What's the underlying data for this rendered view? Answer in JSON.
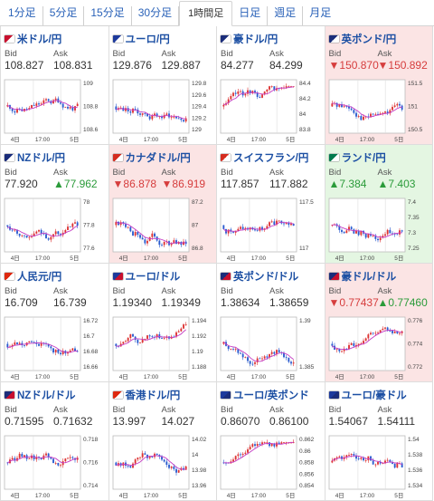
{
  "tabs": [
    {
      "label": "1分足",
      "active": false
    },
    {
      "label": "5分足",
      "active": false
    },
    {
      "label": "15分足",
      "active": false
    },
    {
      "label": "30分足",
      "active": false
    },
    {
      "label": "1時間足",
      "active": true
    },
    {
      "label": "日足",
      "active": false
    },
    {
      "label": "週足",
      "active": false
    },
    {
      "label": "月足",
      "active": false
    }
  ],
  "bid_label": "Bid",
  "ask_label": "Ask",
  "colors": {
    "red_bg": "#fbe4e4",
    "green_bg": "#e4f6e2",
    "name": "#1c4fa3",
    "down": "#d63d3d",
    "up": "#2b9b3a",
    "candle_up": "#d33",
    "candle_down": "#2a5ccf",
    "ma": "#c43bc4"
  },
  "cells": [
    {
      "name": "米ドル/円",
      "bid": "108.827",
      "ask": "108.831",
      "bg": "normal",
      "dir": "none",
      "flag": "us-jp-flag-icon",
      "yticks": [
        "109",
        "108.8",
        "108.6"
      ],
      "xticks": [
        "4日",
        "17:00",
        "5日"
      ],
      "seed": 11
    },
    {
      "name": "ユーロ/円",
      "bid": "129.876",
      "ask": "129.887",
      "bg": "normal",
      "dir": "none",
      "flag": "eu-jp-flag-icon",
      "yticks": [
        "129.8",
        "129.6",
        "129.4",
        "129.2",
        "129"
      ],
      "xticks": [
        "4日",
        "17:00",
        "5日"
      ],
      "seed": 23
    },
    {
      "name": "豪ドル/円",
      "bid": "84.277",
      "ask": "84.299",
      "bg": "normal",
      "dir": "none",
      "flag": "au-jp-flag-icon",
      "yticks": [
        "84.4",
        "84.2",
        "84",
        "83.8"
      ],
      "xticks": [
        "4日",
        "17:00",
        "5日"
      ],
      "seed": 37
    },
    {
      "name": "英ポンド/円",
      "bid": "150.870",
      "ask": "150.892",
      "bg": "red",
      "dir": "down",
      "flag": "gb-jp-flag-icon",
      "yticks": [
        "151.5",
        "151",
        "150.5"
      ],
      "xticks": [
        "4日",
        "17:00",
        "5日"
      ],
      "seed": 41
    },
    {
      "name": "NZドル/円",
      "bid": "77.920",
      "ask": "77.962",
      "bg": "normal",
      "dir": "ask-up",
      "flag": "nz-jp-flag-icon",
      "yticks": [
        "78",
        "77.8",
        "77.6"
      ],
      "xticks": [
        "4日",
        "17:00",
        "5日"
      ],
      "seed": 53
    },
    {
      "name": "カナダドル/円",
      "bid": "86.878",
      "ask": "86.919",
      "bg": "red",
      "dir": "down",
      "flag": "ca-jp-flag-icon",
      "yticks": [
        "87.2",
        "87",
        "86.8"
      ],
      "xticks": [
        "4日",
        "17:00",
        "5日"
      ],
      "seed": 67
    },
    {
      "name": "スイスフラン/円",
      "bid": "117.857",
      "ask": "117.882",
      "bg": "normal",
      "dir": "none",
      "flag": "ch-jp-flag-icon",
      "yticks": [
        "117.5",
        "117"
      ],
      "xticks": [
        "4日",
        "17:00",
        "5日"
      ],
      "seed": 71
    },
    {
      "name": "ランド/円",
      "bid": "7.384",
      "ask": "7.403",
      "bg": "green",
      "dir": "up",
      "flag": "za-jp-flag-icon",
      "yticks": [
        "7.4",
        "7.35",
        "7.3",
        "7.25"
      ],
      "xticks": [
        "4日",
        "17:00",
        "5日"
      ],
      "seed": 83
    },
    {
      "name": "人民元/円",
      "bid": "16.709",
      "ask": "16.739",
      "bg": "normal",
      "dir": "none",
      "flag": "cn-jp-flag-icon",
      "yticks": [
        "16.72",
        "16.7",
        "16.68",
        "16.66"
      ],
      "xticks": [
        "4日",
        "17:00",
        "5日"
      ],
      "seed": 97
    },
    {
      "name": "ユーロ/ドル",
      "bid": "1.19340",
      "ask": "1.19349",
      "bg": "normal",
      "dir": "none",
      "flag": "eu-us-flag-icon",
      "yticks": [
        "1.194",
        "1.192",
        "1.19",
        "1.188"
      ],
      "xticks": [
        "4日",
        "17:00",
        "5日"
      ],
      "seed": 101
    },
    {
      "name": "英ポンド/ドル",
      "bid": "1.38634",
      "ask": "1.38659",
      "bg": "normal",
      "dir": "none",
      "flag": "gb-us-flag-icon",
      "yticks": [
        "1.39",
        "1.385"
      ],
      "xticks": [
        "4日",
        "17:00",
        "5日"
      ],
      "seed": 113
    },
    {
      "name": "豪ドル/ドル",
      "bid": "0.77437",
      "ask": "0.77460",
      "bg": "red",
      "dir": "mixed",
      "flag": "au-us-flag-icon",
      "yticks": [
        "0.776",
        "0.774",
        "0.772"
      ],
      "xticks": [
        "4日",
        "17:00",
        "5日"
      ],
      "seed": 127
    },
    {
      "name": "NZドル/ドル",
      "bid": "0.71595",
      "ask": "0.71632",
      "bg": "normal",
      "dir": "none",
      "flag": "nz-us-flag-icon",
      "yticks": [
        "0.718",
        "0.716",
        "0.714"
      ],
      "xticks": [
        "4日",
        "17:00",
        "5日"
      ],
      "seed": 131
    },
    {
      "name": "香港ドル/円",
      "bid": "13.997",
      "ask": "14.027",
      "bg": "normal",
      "dir": "none",
      "flag": "hk-jp-flag-icon",
      "yticks": [
        "14.02",
        "14",
        "13.98",
        "13.96"
      ],
      "xticks": [
        "4日",
        "17:00",
        "5日"
      ],
      "seed": 149
    },
    {
      "name": "ユーロ/英ポンド",
      "bid": "0.86070",
      "ask": "0.86100",
      "bg": "normal",
      "dir": "none",
      "flag": "eu-gb-flag-icon",
      "yticks": [
        "0.862",
        "0.86",
        "0.858",
        "0.856",
        "0.854"
      ],
      "xticks": [
        "4日",
        "17:00",
        "5日"
      ],
      "seed": 157
    },
    {
      "name": "ユーロ/豪ドル",
      "bid": "1.54067",
      "ask": "1.54111",
      "bg": "normal",
      "dir": "none",
      "flag": "eu-au-flag-icon",
      "yticks": [
        "1.54",
        "1.538",
        "1.536",
        "1.534"
      ],
      "xticks": [
        "4日",
        "17:00",
        "5日"
      ],
      "seed": 163
    }
  ]
}
